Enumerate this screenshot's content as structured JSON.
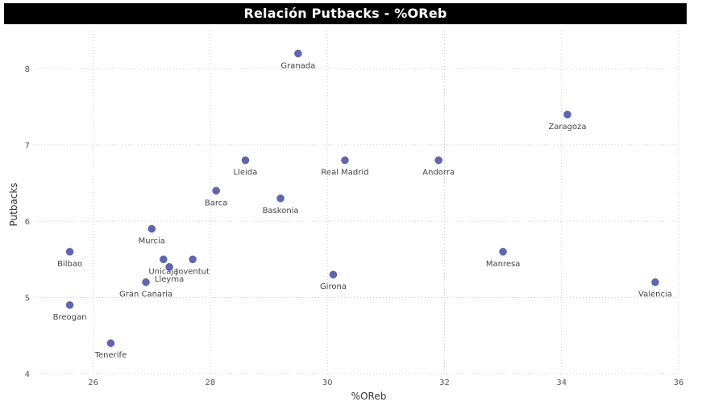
{
  "chart_data": {
    "type": "scatter",
    "title": "Relación Putbacks - %OReb",
    "xlabel": "%OReb",
    "ylabel": "Putbacks",
    "xlim": [
      25,
      36
    ],
    "ylim": [
      4,
      8.5
    ],
    "xticks": [
      26,
      28,
      30,
      32,
      34,
      36
    ],
    "yticks": [
      4,
      5,
      6,
      7,
      8
    ],
    "grid": true,
    "point_color": "#5b66b8",
    "points": [
      {
        "label": "Granada",
        "x": 29.5,
        "y": 8.2
      },
      {
        "label": "Zaragoza",
        "x": 34.1,
        "y": 7.4
      },
      {
        "label": "Lleida",
        "x": 28.6,
        "y": 6.8
      },
      {
        "label": "Real Madrid",
        "x": 30.3,
        "y": 6.8
      },
      {
        "label": "Andorra",
        "x": 31.9,
        "y": 6.8
      },
      {
        "label": "Barca",
        "x": 28.1,
        "y": 6.4
      },
      {
        "label": "Baskonia",
        "x": 29.2,
        "y": 6.3
      },
      {
        "label": "Murcia",
        "x": 27.0,
        "y": 5.9
      },
      {
        "label": "Bilbao",
        "x": 25.6,
        "y": 5.6
      },
      {
        "label": "Manresa",
        "x": 33.0,
        "y": 5.6
      },
      {
        "label": "Unicaja",
        "x": 27.2,
        "y": 5.5
      },
      {
        "label": "Lleyma",
        "x": 27.3,
        "y": 5.4
      },
      {
        "label": "Joventut",
        "x": 27.7,
        "y": 5.5
      },
      {
        "label": "Girona",
        "x": 30.1,
        "y": 5.3
      },
      {
        "label": "Gran Canaria",
        "x": 26.9,
        "y": 5.2
      },
      {
        "label": "Valencia",
        "x": 35.6,
        "y": 5.2
      },
      {
        "label": "Breogan",
        "x": 25.6,
        "y": 4.9
      },
      {
        "label": "Tenerife",
        "x": 26.3,
        "y": 4.4
      }
    ]
  }
}
